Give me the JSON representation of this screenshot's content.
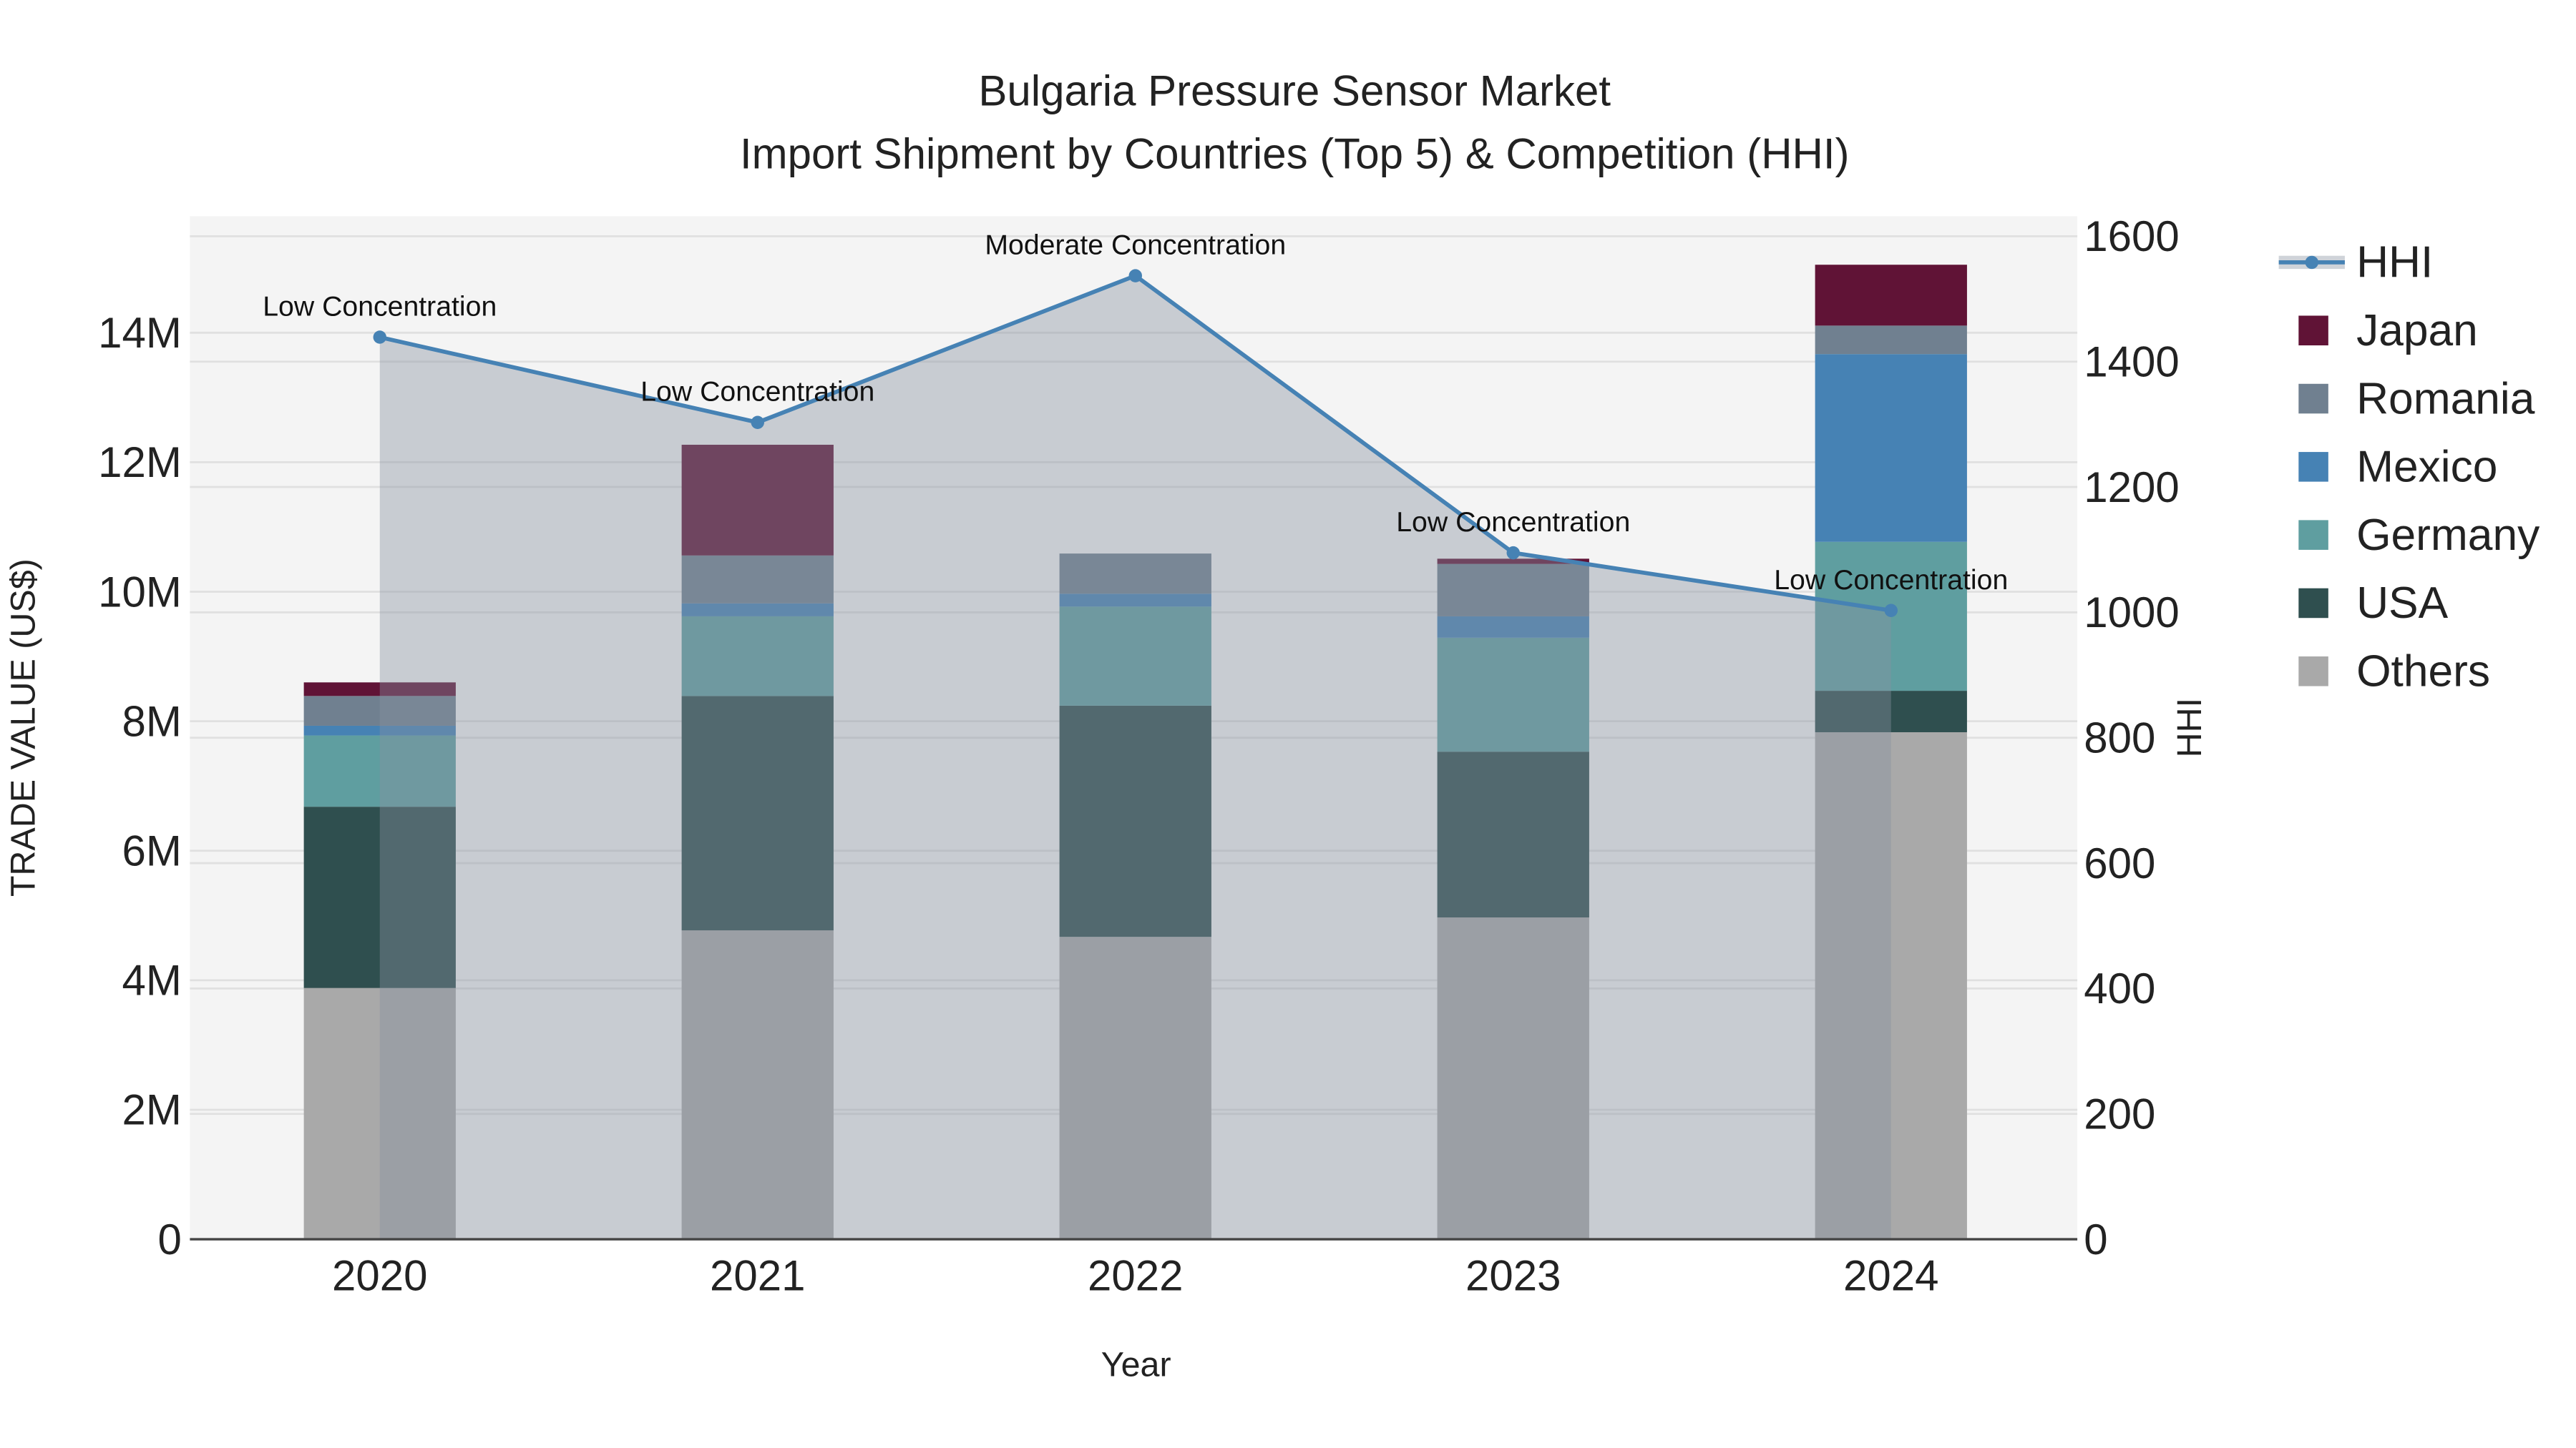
{
  "chart_data": {
    "type": "bar",
    "title": "Bulgaria Pressure Sensor Market",
    "subtitle": "Import Shipment by Countries (Top 5) & Competition (HHI)",
    "xlabel": "Year",
    "ylabel": "TRADE VALUE (US$)",
    "y2label": "HHI",
    "categories": [
      "2020",
      "2021",
      "2022",
      "2023",
      "2024"
    ],
    "ylim": [
      0,
      15800000
    ],
    "y2lim": [
      0,
      1632
    ],
    "yticks": [
      {
        "v": 0,
        "label": "0"
      },
      {
        "v": 2000000,
        "label": "2M"
      },
      {
        "v": 4000000,
        "label": "4M"
      },
      {
        "v": 6000000,
        "label": "6M"
      },
      {
        "v": 8000000,
        "label": "8M"
      },
      {
        "v": 10000000,
        "label": "10M"
      },
      {
        "v": 12000000,
        "label": "12M"
      },
      {
        "v": 14000000,
        "label": "14M"
      }
    ],
    "y2ticks": [
      {
        "v": 0,
        "label": "0"
      },
      {
        "v": 200,
        "label": "200"
      },
      {
        "v": 400,
        "label": "400"
      },
      {
        "v": 600,
        "label": "600"
      },
      {
        "v": 800,
        "label": "800"
      },
      {
        "v": 1000,
        "label": "1000"
      },
      {
        "v": 1200,
        "label": "1200"
      },
      {
        "v": 1400,
        "label": "1400"
      },
      {
        "v": 1600,
        "label": "1600"
      }
    ],
    "grid": true,
    "legend_position": "right",
    "stacked": true,
    "series": [
      {
        "name": "Others",
        "color": "#a9a9a9",
        "values": [
          3880000,
          4770000,
          4670000,
          4970000,
          7830000
        ]
      },
      {
        "name": "USA",
        "color": "#2f4f4f",
        "values": [
          2800000,
          3620000,
          3570000,
          2560000,
          640000
        ]
      },
      {
        "name": "Germany",
        "color": "#5f9ea0",
        "values": [
          1100000,
          1230000,
          1530000,
          1760000,
          2300000
        ]
      },
      {
        "name": "Mexico",
        "color": "#4682b4",
        "values": [
          150000,
          200000,
          200000,
          330000,
          2900000
        ]
      },
      {
        "name": "Romania",
        "color": "#708090",
        "values": [
          460000,
          740000,
          620000,
          810000,
          440000
        ]
      },
      {
        "name": "Japan",
        "color": "#601336",
        "values": [
          210000,
          1710000,
          0,
          80000,
          940000
        ]
      }
    ],
    "line": {
      "name": "HHI",
      "color": "#4682b4",
      "axis": "y2",
      "values": [
        1439,
        1303,
        1537,
        1095,
        1003
      ],
      "annotations": [
        "Low Concentration",
        "Low Concentration",
        "Moderate Concentration",
        "Low Concentration",
        "Low Concentration"
      ]
    },
    "legend": [
      "HHI",
      "Japan",
      "Romania",
      "Mexico",
      "Germany",
      "USA",
      "Others"
    ]
  }
}
